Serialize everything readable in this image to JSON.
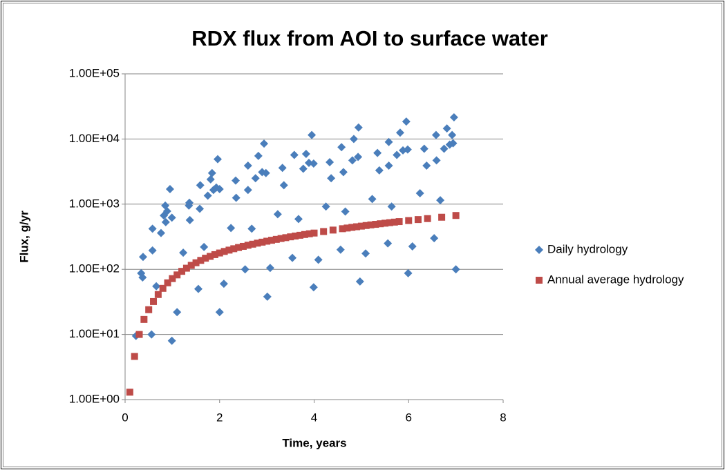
{
  "chart_data": {
    "type": "scatter",
    "title": "RDX flux from AOI to surface water",
    "xlabel": "Time, years",
    "ylabel": "Flux, g/yr",
    "xlim": [
      0,
      8
    ],
    "xticks": [
      0,
      2,
      4,
      6,
      8
    ],
    "ylim": [
      1,
      100000
    ],
    "ylog": true,
    "yticks": [
      {
        "value": 1,
        "label": "1.00E+00"
      },
      {
        "value": 10,
        "label": "1.00E+01"
      },
      {
        "value": 100,
        "label": "1.00E+02"
      },
      {
        "value": 1000,
        "label": "1.00E+03"
      },
      {
        "value": 10000,
        "label": "1.00E+04"
      },
      {
        "value": 100000,
        "label": "1.00E+05"
      }
    ],
    "grid": true,
    "legend": "right",
    "series": [
      {
        "name": "Daily hydrology",
        "color": "#4a7ebb",
        "marker": "diamond",
        "x": [
          0.23,
          0.34,
          0.37,
          0.38,
          0.56,
          0.58,
          0.58,
          0.66,
          0.76,
          0.82,
          0.85,
          0.86,
          0.89,
          0.95,
          0.99,
          0.99,
          1.1,
          1.23,
          1.35,
          1.36,
          1.37,
          1.55,
          1.58,
          1.59,
          1.67,
          1.75,
          1.81,
          1.84,
          1.87,
          1.93,
          1.96,
          2.0,
          2.0,
          2.09,
          2.24,
          2.34,
          2.35,
          2.54,
          2.6,
          2.6,
          2.68,
          2.76,
          2.82,
          2.9,
          2.94,
          2.98,
          3.01,
          3.07,
          3.23,
          3.33,
          3.36,
          3.54,
          3.58,
          3.67,
          3.77,
          3.83,
          3.89,
          3.95,
          3.99,
          3.99,
          4.09,
          4.25,
          4.33,
          4.36,
          4.56,
          4.58,
          4.62,
          4.66,
          4.81,
          4.84,
          4.93,
          4.94,
          4.97,
          5.09,
          5.23,
          5.34,
          5.38,
          5.56,
          5.58,
          5.58,
          5.64,
          5.75,
          5.82,
          5.88,
          5.95,
          5.98,
          5.99,
          6.08,
          6.24,
          6.33,
          6.38,
          6.54,
          6.58,
          6.59,
          6.67,
          6.75,
          6.81,
          6.87,
          6.92,
          6.94,
          6.96,
          7.0
        ],
        "values": [
          9.5,
          87,
          75,
          155,
          10,
          195,
          420,
          55,
          360,
          670,
          950,
          530,
          780,
          1700,
          620,
          8,
          22,
          180,
          950,
          1050,
          570,
          50,
          850,
          1950,
          220,
          1350,
          2400,
          3000,
          1650,
          1800,
          4900,
          1700,
          22,
          60,
          430,
          2300,
          1250,
          100,
          3900,
          1650,
          420,
          2500,
          5500,
          3100,
          8500,
          3000,
          38,
          105,
          700,
          3600,
          1950,
          150,
          5700,
          590,
          3500,
          5900,
          4300,
          11500,
          4200,
          53,
          140,
          920,
          4400,
          2500,
          200,
          7500,
          3100,
          770,
          4700,
          10000,
          5300,
          15000,
          65,
          175,
          1200,
          6100,
          3300,
          250,
          9000,
          3900,
          920,
          5700,
          12500,
          6700,
          18500,
          6900,
          87,
          225,
          1470,
          7100,
          3900,
          300,
          11500,
          4700,
          1150,
          7100,
          14500,
          8200,
          11500,
          8600,
          21500,
          100
        ]
      },
      {
        "name": "Annual average hydrology",
        "color": "#be4b48",
        "marker": "square",
        "x": [
          0.1,
          0.2,
          0.3,
          0.4,
          0.5,
          0.6,
          0.7,
          0.8,
          0.9,
          1.0,
          1.1,
          1.2,
          1.3,
          1.4,
          1.5,
          1.6,
          1.7,
          1.8,
          1.9,
          2.0,
          2.1,
          2.2,
          2.3,
          2.4,
          2.5,
          2.6,
          2.7,
          2.8,
          2.9,
          3.0,
          3.1,
          3.2,
          3.3,
          3.4,
          3.5,
          3.6,
          3.7,
          3.8,
          3.9,
          4.0,
          4.2,
          4.4,
          4.6,
          4.7,
          4.8,
          4.9,
          5.0,
          5.1,
          5.2,
          5.3,
          5.4,
          5.5,
          5.6,
          5.7,
          5.8,
          6.0,
          6.2,
          6.4,
          6.7,
          7.0
        ],
        "values": [
          1.3,
          4.6,
          10,
          17,
          24,
          32,
          41,
          51,
          62,
          72,
          82,
          93,
          104,
          115,
          126,
          137,
          148,
          158,
          168,
          178,
          188,
          197,
          207,
          216,
          225,
          234,
          243,
          252,
          261,
          270,
          279,
          288,
          297,
          306,
          315,
          324,
          333,
          342,
          351,
          360,
          380,
          400,
          420,
          430,
          440,
          450,
          460,
          470,
          480,
          490,
          500,
          510,
          520,
          530,
          540,
          560,
          580,
          600,
          630,
          670
        ]
      }
    ]
  }
}
